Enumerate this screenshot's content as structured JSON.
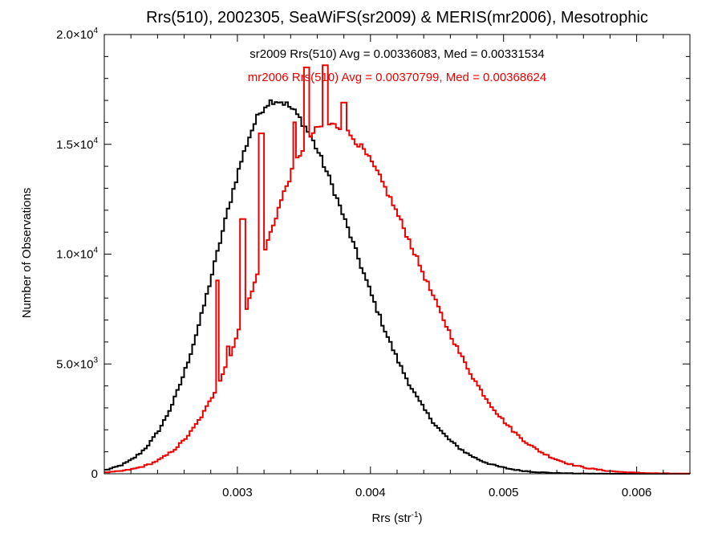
{
  "chart_data": {
    "type": "histogram",
    "title": "Rrs(510), 2002305, SeaWiFS(sr2009) & MERIS(mr2006), Mesotrophic",
    "xlabel": {
      "base": "Rrs (str",
      "sup": "-1",
      "end": ")"
    },
    "ylabel": "Number of Observations",
    "xlim": [
      0.002,
      0.0064
    ],
    "ylim": [
      0,
      20000
    ],
    "x_ticks": [
      {
        "value": 0.003,
        "label": "0.003"
      },
      {
        "value": 0.004,
        "label": "0.004"
      },
      {
        "value": 0.005,
        "label": "0.005"
      },
      {
        "value": 0.006,
        "label": "0.006"
      }
    ],
    "x_minor_step": 0.0002,
    "y_ticks": [
      {
        "value": 0,
        "mant": "0",
        "exp": ""
      },
      {
        "value": 5000,
        "mant": "5.0×10",
        "exp": "3"
      },
      {
        "value": 10000,
        "mant": "1.0×10",
        "exp": "4"
      },
      {
        "value": 15000,
        "mant": "1.5×10",
        "exp": "4"
      },
      {
        "value": 20000,
        "mant": "2.0×10",
        "exp": "4"
      }
    ],
    "y_minor_step": 1000,
    "annotations": [
      {
        "text": "sr2009 Rrs(510) Avg = 0.00336083, Med = 0.00331534",
        "color": "#000000"
      },
      {
        "text": "mr2006 Rrs(510) Avg = 0.00370799, Med = 0.00368624",
        "color": "#ee0000"
      }
    ],
    "series": [
      {
        "name": "sr2009",
        "color": "#000000",
        "model": "skew_gauss",
        "peak_x": 0.00328,
        "peak_y": 17000,
        "sigma_left": 0.00042,
        "sigma_right": 0.0006,
        "spikes": []
      },
      {
        "name": "mr2006",
        "color": "#ee0000",
        "model": "skew_gauss",
        "peak_x": 0.00368,
        "peak_y": 15900,
        "sigma_left": 0.0005,
        "sigma_right": 0.00068,
        "spikes": [
          {
            "x": 0.00285,
            "y": 8800
          },
          {
            "x": 0.00293,
            "y": 5800
          },
          {
            "x": 0.00304,
            "y": 11600
          },
          {
            "x": 0.00318,
            "y": 15500
          },
          {
            "x": 0.00343,
            "y": 16000
          },
          {
            "x": 0.00352,
            "y": 18500
          },
          {
            "x": 0.00366,
            "y": 18600
          },
          {
            "x": 0.0038,
            "y": 16900
          },
          {
            "x": 0.00393,
            "y": 13900
          },
          {
            "x": 0.00408,
            "y": 10300
          },
          {
            "x": 0.00422,
            "y": 7600
          },
          {
            "x": 0.00435,
            "y": 5600
          },
          {
            "x": 0.00449,
            "y": 4100
          },
          {
            "x": 0.00462,
            "y": 4400
          }
        ]
      }
    ]
  }
}
